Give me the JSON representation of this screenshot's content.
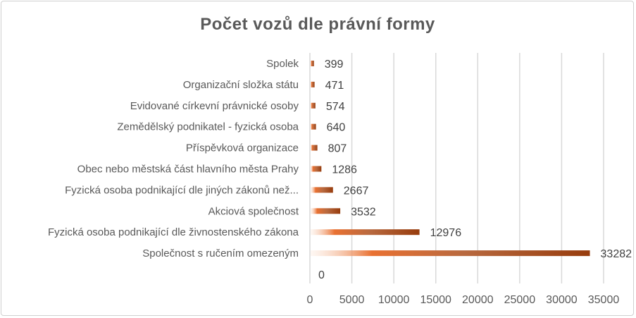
{
  "chart_data": {
    "type": "bar",
    "orientation": "horizontal",
    "title": "Počet vozů dle právní formy",
    "categories": [
      "Spolek",
      "Organizační složka státu",
      "Evidované církevní právnické osoby",
      "Zemědělský podnikatel - fyzická osoba",
      "Příspěvková organizace",
      "Obec nebo městská část hlavního města Prahy",
      "Fyzická osoba podnikající dle jiných zákonů než...",
      "Akciová společnost",
      "Fyzická osoba podnikající dle živnostenského zákona",
      "Společnost s ručením omezeným",
      ""
    ],
    "values": [
      399,
      471,
      574,
      640,
      807,
      1286,
      2667,
      3532,
      12976,
      33282,
      0
    ],
    "xlim": [
      0,
      35000
    ],
    "xticks": [
      "0",
      "5000",
      "10000",
      "15000",
      "20000",
      "25000",
      "30000",
      "35000"
    ],
    "xtick_values": [
      0,
      5000,
      10000,
      15000,
      20000,
      25000,
      30000,
      35000
    ],
    "grid": true,
    "legend": "none",
    "colors": {
      "bar_light": "#fbe5d6",
      "bar_mid": "#e97132",
      "bar_dark": "#973c0d",
      "grid": "#d9d9d9",
      "text": "#595959"
    }
  }
}
